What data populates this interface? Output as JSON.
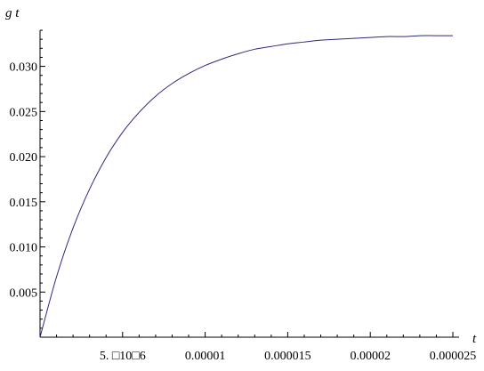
{
  "chart_data": {
    "type": "line",
    "xlabel": "t",
    "ylabel": "g t",
    "xlim": [
      0,
      2.5e-05
    ],
    "ylim": [
      0,
      0.034
    ],
    "x_ticks": [
      5e-06,
      1e-05,
      1.5e-05,
      2e-05,
      2.5e-05
    ],
    "x_tick_labels": [
      "5. □10□6",
      "0.00001",
      "0.000015",
      "0.00002",
      "0.000025"
    ],
    "y_ticks": [
      0.005,
      0.01,
      0.015,
      0.02,
      0.025,
      0.03
    ],
    "y_tick_labels": [
      "0.005",
      "0.010",
      "0.015",
      "0.020",
      "0.025",
      "0.030"
    ],
    "grid": false,
    "series": [
      {
        "color": "#2b2b7a",
        "x": [
          0,
          1e-06,
          2e-06,
          3e-06,
          4e-06,
          5e-06,
          6e-06,
          7e-06,
          8e-06,
          9e-06,
          1e-05,
          1.1e-05,
          1.2e-05,
          1.3e-05,
          1.4e-05,
          1.5e-05,
          1.6e-05,
          1.7e-05,
          1.8e-05,
          1.9e-05,
          2e-05,
          2.1e-05,
          2.2e-05,
          2.3e-05,
          2.4e-05,
          2.5e-05
        ],
        "y": [
          0,
          0.0067,
          0.0121,
          0.0164,
          0.0199,
          0.0227,
          0.0249,
          0.0267,
          0.0281,
          0.0292,
          0.0301,
          0.0308,
          0.0314,
          0.0319,
          0.0322,
          0.0325,
          0.0327,
          0.0329,
          0.033,
          0.0331,
          0.0332,
          0.0333,
          0.0333,
          0.0334,
          0.0334,
          0.0334
        ]
      }
    ]
  }
}
